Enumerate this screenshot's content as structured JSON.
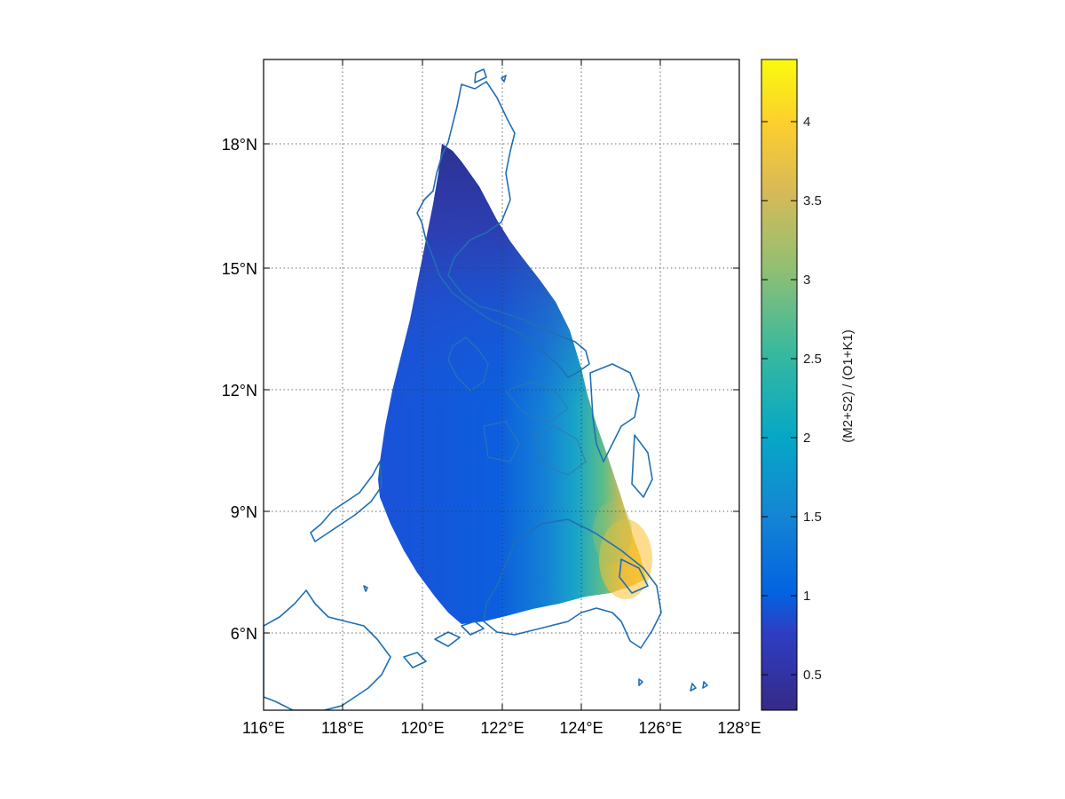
{
  "map": {
    "x_ticks": [
      "116°E",
      "118°E",
      "120°E",
      "122°E",
      "124°E",
      "126°E",
      "128°E"
    ],
    "y_ticks": [
      "6°N",
      "9°N",
      "12°N",
      "15°N",
      "18°N"
    ],
    "lon_range": [
      116,
      128
    ],
    "lat_range": [
      4,
      20
    ]
  },
  "colorbar": {
    "label": "(M2+S2) / (O1+K1)",
    "ticks": [
      "0.5",
      "1",
      "1.5",
      "2",
      "2.5",
      "3",
      "3.5",
      "4"
    ],
    "range": [
      0.27,
      4.4
    ],
    "colormap": [
      "#352a87",
      "#0363e1",
      "#1485d4",
      "#06a7c6",
      "#38b99e",
      "#92bf73",
      "#d9ba56",
      "#fcce2e",
      "#f9fb0e"
    ]
  },
  "field": {
    "variable": "(M2+S2) / (O1+K1)",
    "low_value_region": "northwest (Luzon strait side) ~0.3",
    "high_value_region": "southeast edge near 125.5°E, 7.5°N ~4.0"
  }
}
